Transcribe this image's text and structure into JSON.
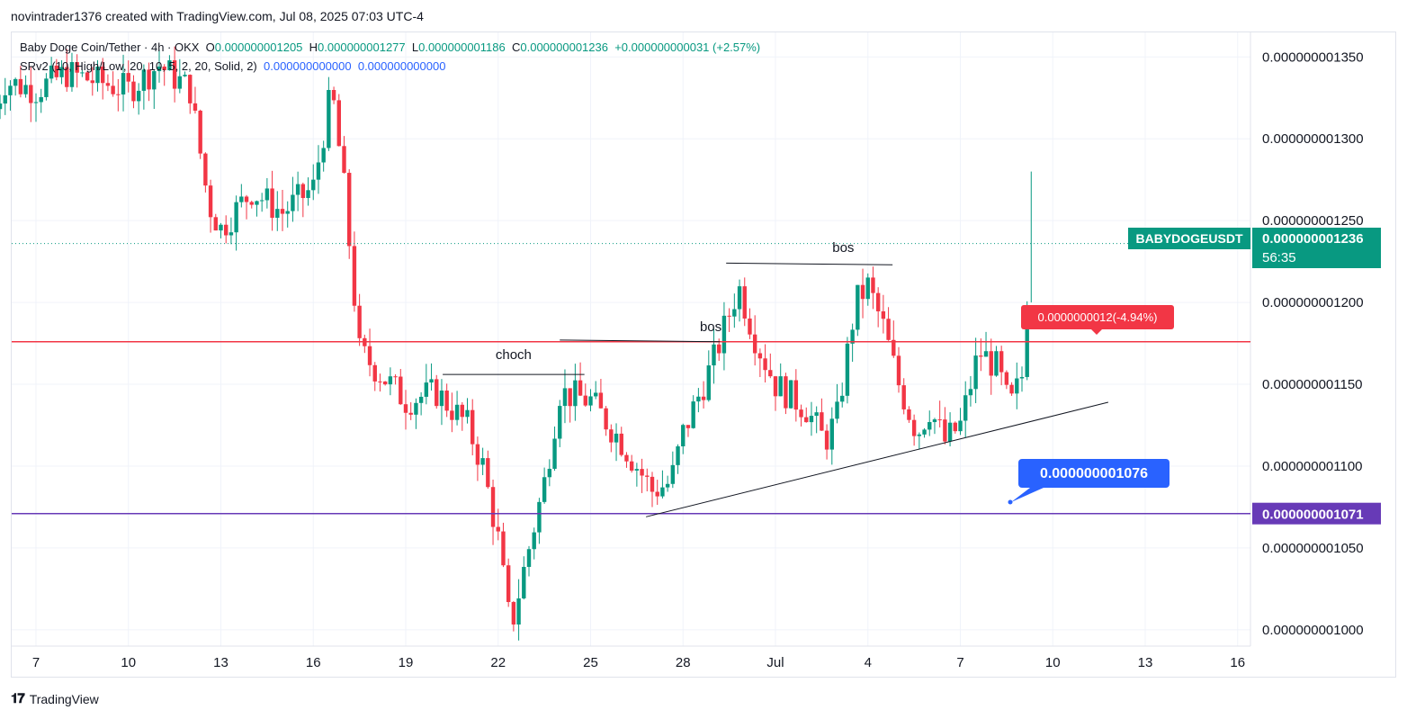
{
  "header": {
    "credit": "novintrader1376 created with TradingView.com, Jul 08, 2025 07:03 UTC-4"
  },
  "legend": {
    "symbol": "Baby Doge Coin/Tether · 4h · OKX",
    "o_label": "O",
    "o_value": "0.000000001205",
    "h_label": "H",
    "h_value": "0.000000001277",
    "l_label": "L",
    "l_value": "0.000000001186",
    "c_label": "C",
    "c_value": "0.000000001236",
    "change": "+0.000000000031 (+2.57%)",
    "indicator": "SRv2 (10, High/Low, 20, 10, 5, 2, 20, Solid, 2)",
    "ind_v1": "0.000000000000",
    "ind_v2": "0.000000000000"
  },
  "chart_data": {
    "type": "candlestick",
    "symbol": "BABYDOGEUSDT",
    "timeframe": "4h",
    "x_ticks": [
      "7",
      "10",
      "13",
      "16",
      "19",
      "22",
      "25",
      "28",
      "Jul",
      "4",
      "7",
      "10",
      "13",
      "16"
    ],
    "y_ticks": [
      "0.000000001350",
      "0.000000001300",
      "0.000000001250",
      "0.000000001200",
      "0.000000001150",
      "0.000000001100",
      "0.000000001050",
      "0.000000001000"
    ],
    "y_range": [
      9.9e-10,
      1.365e-09
    ],
    "last_price_label": "0.000000001236",
    "countdown": "56:35",
    "series_close_path": [
      [
        "Jun 6",
        1.335
      ],
      [
        "Jun 7",
        1.33
      ],
      [
        "Jun 8",
        1.34
      ],
      [
        "Jun 9",
        1.335
      ],
      [
        "Jun 10",
        1.33
      ],
      [
        "Jun 11",
        1.345
      ],
      [
        "Jun 12",
        1.33
      ],
      [
        "Jun 12.5",
        1.26
      ],
      [
        "Jun 13",
        1.255
      ],
      [
        "Jun 14",
        1.265
      ],
      [
        "Jun 15",
        1.255
      ],
      [
        "Jun 16",
        1.27
      ],
      [
        "Jun 17",
        1.33
      ],
      [
        "Jun 17.5",
        1.27
      ],
      [
        "Jun 18",
        1.17
      ],
      [
        "Jun 19",
        1.14
      ],
      [
        "Jun 20",
        1.145
      ],
      [
        "Jun 21",
        1.125
      ],
      [
        "Jun 22",
        1.055
      ],
      [
        "Jun 22.3",
        1.0
      ],
      [
        "Jun 23",
        1.05
      ],
      [
        "Jun 24",
        1.145
      ],
      [
        "Jun 25",
        1.14
      ],
      [
        "Jun 26",
        1.115
      ],
      [
        "Jun 27",
        1.085
      ],
      [
        "Jun 28",
        1.12
      ],
      [
        "Jun 29",
        1.165
      ],
      [
        "Jun 30",
        1.19
      ],
      [
        "Jul 1",
        1.135
      ],
      [
        "Jul 2",
        1.125
      ],
      [
        "Jul 3",
        1.21
      ],
      [
        "Jul 4",
        1.185
      ],
      [
        "Jul 5",
        1.125
      ],
      [
        "Jul 6",
        1.125
      ],
      [
        "Jul 7",
        1.17
      ],
      [
        "Jul 8",
        1.236
      ]
    ],
    "horizontal_lines": [
      {
        "value": 1.176e-09,
        "color": "#f23645"
      },
      {
        "value": 1.071e-09,
        "color": "#673ab7",
        "label": "0.000000001071"
      },
      {
        "value": 1.236e-09,
        "color": "#089981",
        "style": "dotted"
      }
    ],
    "annotations": [
      {
        "text": "choch"
      },
      {
        "text": "bos"
      },
      {
        "text": "bos"
      }
    ],
    "measure_label": "0.0000000012(-4.94%)",
    "price_note": "0.000000001076"
  },
  "colors": {
    "up": "#089981",
    "down": "#f23645",
    "grid": "#f0f3fa",
    "purple": "#673ab7",
    "blue": "#2962ff"
  },
  "footer": {
    "brand": "TradingView"
  }
}
